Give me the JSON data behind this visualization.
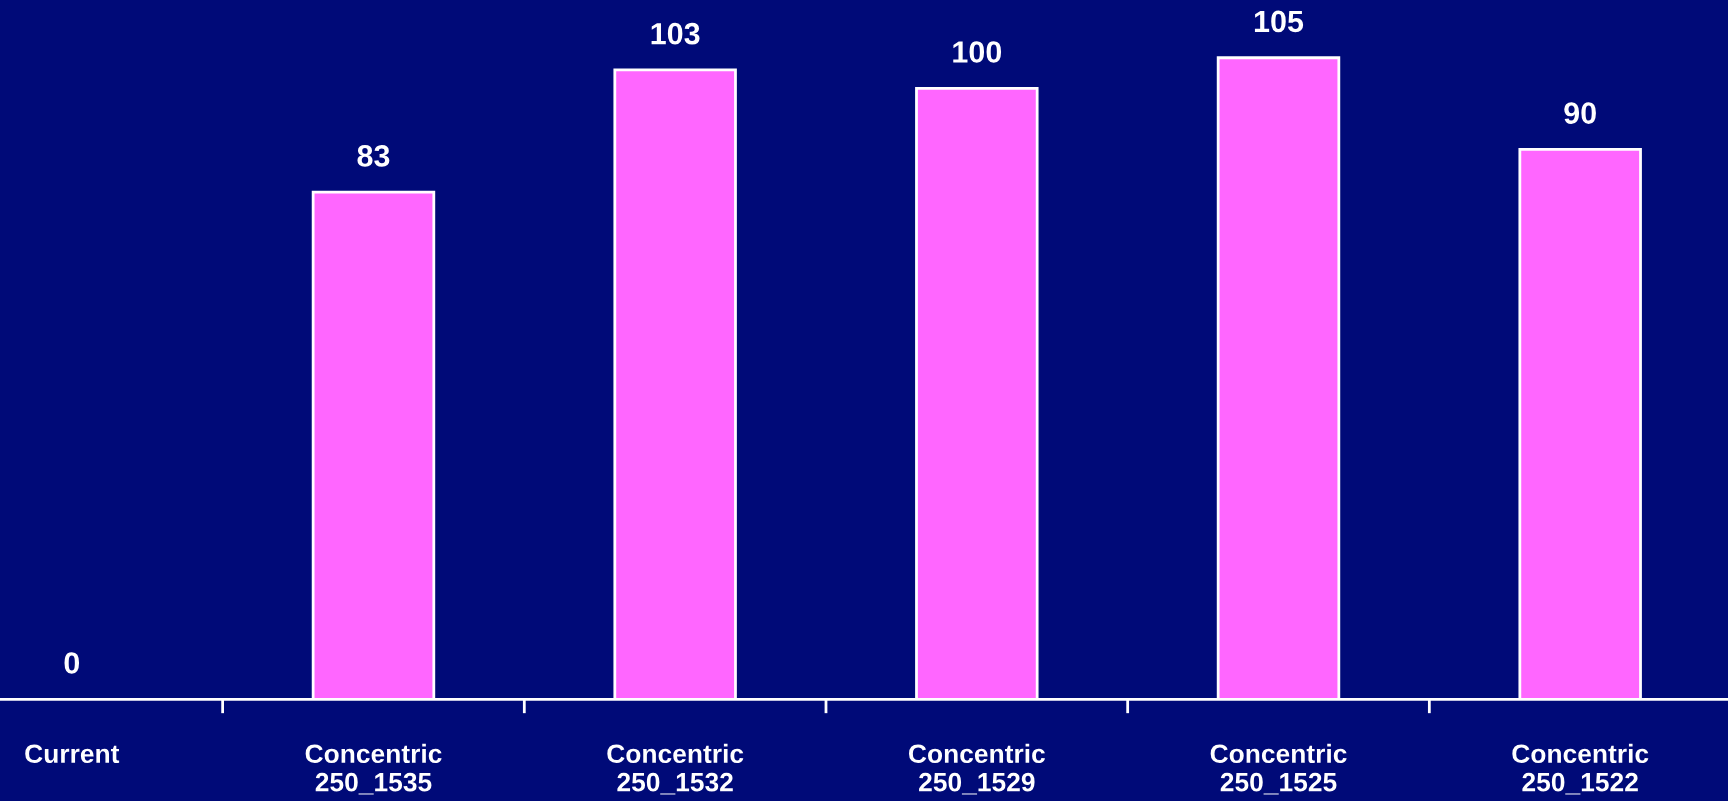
{
  "chart_data": {
    "type": "bar",
    "categories": [
      "Current",
      "Concentric\n250_1535",
      "Concentric\n250_1532",
      "Concentric\n250_1529",
      "Concentric\n250_1525",
      "Concentric\n250_1522"
    ],
    "values": [
      0,
      83,
      103,
      100,
      105,
      90
    ],
    "color": "#ff66ff",
    "data_labels": true,
    "grid": false,
    "legend": false
  }
}
